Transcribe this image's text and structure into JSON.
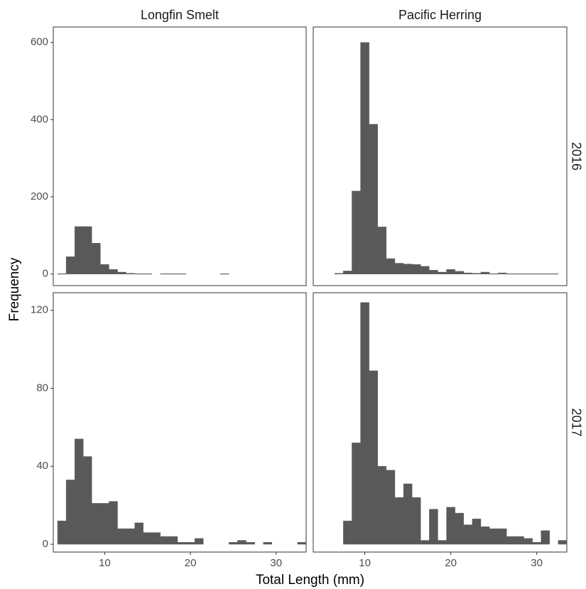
{
  "chart_data": {
    "type": "histogram-facet",
    "xlabel": "Total Length (mm)",
    "ylabel": "Frequency",
    "xlim": [
      4,
      33.5
    ],
    "xticks": [
      10,
      20,
      30
    ],
    "bin_width": 1,
    "columns": [
      "Longfin Smelt",
      "Pacific Herring"
    ],
    "rows": [
      "2016",
      "2017"
    ],
    "row_ylim": {
      "2016": [
        -30,
        640
      ],
      "2017": [
        -4,
        129
      ]
    },
    "row_yticks": {
      "2016": [
        0,
        200,
        400,
        600
      ],
      "2017": [
        0,
        40,
        80,
        120
      ]
    },
    "bar_color": "#595959",
    "panels": [
      {
        "column": "Longfin Smelt",
        "row": "2016",
        "bins_start": 5,
        "values": [
          1,
          45,
          123,
          123,
          80,
          25,
          12,
          5,
          2,
          1,
          1,
          0,
          1,
          1,
          1,
          0,
          0,
          0,
          0,
          1
        ]
      },
      {
        "column": "Pacific Herring",
        "row": "2016",
        "bins_start": 7,
        "values": [
          2,
          8,
          215,
          600,
          388,
          122,
          40,
          28,
          26,
          25,
          20,
          10,
          5,
          12,
          7,
          3,
          2,
          5,
          1,
          3,
          1,
          1,
          1,
          1,
          1,
          1
        ]
      },
      {
        "column": "Longfin Smelt",
        "row": "2017",
        "bins_start": 5,
        "values": [
          12,
          33,
          54,
          45,
          21,
          21,
          22,
          8,
          8,
          11,
          6,
          6,
          4,
          4,
          1,
          1,
          3,
          0,
          0,
          0,
          1,
          2,
          1,
          0,
          1,
          0,
          0,
          0,
          1
        ]
      },
      {
        "column": "Pacific Herring",
        "row": "2017",
        "bins_start": 8,
        "values": [
          12,
          52,
          124,
          89,
          40,
          38,
          24,
          31,
          24,
          2,
          18,
          2,
          19,
          16,
          10,
          13,
          9,
          8,
          8,
          4,
          4,
          3,
          1,
          7,
          0,
          2
        ]
      }
    ]
  }
}
